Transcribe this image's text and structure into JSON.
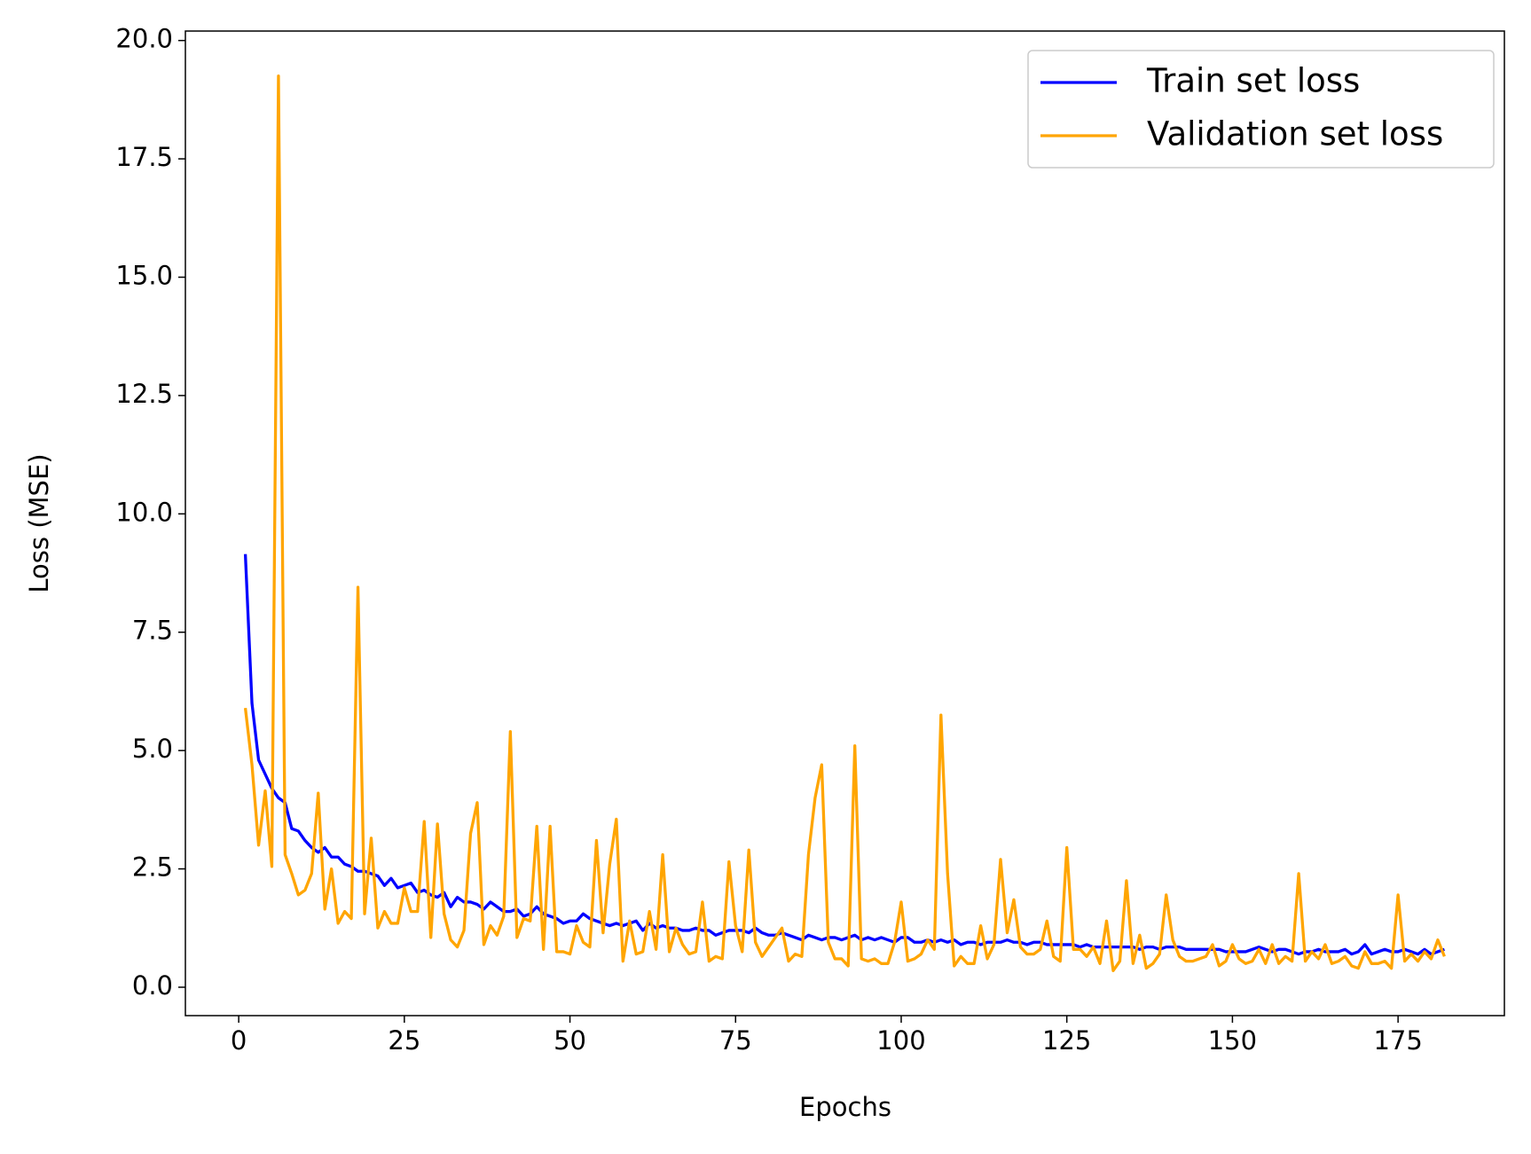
{
  "chart_data": {
    "type": "line",
    "x_label": "Epochs",
    "y_label": "Loss (MSE)",
    "x": [
      1,
      2,
      3,
      4,
      5,
      6,
      7,
      8,
      9,
      10,
      11,
      12,
      13,
      14,
      15,
      16,
      17,
      18,
      19,
      20,
      21,
      22,
      23,
      24,
      25,
      26,
      27,
      28,
      29,
      30,
      31,
      32,
      33,
      34,
      35,
      36,
      37,
      38,
      39,
      40,
      41,
      42,
      43,
      44,
      45,
      46,
      47,
      48,
      49,
      50,
      51,
      52,
      53,
      54,
      55,
      56,
      57,
      58,
      59,
      60,
      61,
      62,
      63,
      64,
      65,
      66,
      67,
      68,
      69,
      70,
      71,
      72,
      73,
      74,
      75,
      76,
      77,
      78,
      79,
      80,
      81,
      82,
      83,
      84,
      85,
      86,
      87,
      88,
      89,
      90,
      91,
      92,
      93,
      94,
      95,
      96,
      97,
      98,
      99,
      100,
      101,
      102,
      103,
      104,
      105,
      106,
      107,
      108,
      109,
      110,
      111,
      112,
      113,
      114,
      115,
      116,
      117,
      118,
      119,
      120,
      121,
      122,
      123,
      124,
      125,
      126,
      127,
      128,
      129,
      130,
      131,
      132,
      133,
      134,
      135,
      136,
      137,
      138,
      139,
      140,
      141,
      142,
      143,
      144,
      145,
      146,
      147,
      148,
      149,
      150,
      151,
      152,
      153,
      154,
      155,
      156,
      157,
      158,
      159,
      160,
      161,
      162,
      163,
      164,
      165,
      166,
      167,
      168,
      169,
      170,
      171,
      172,
      173,
      174,
      175,
      176,
      177,
      178,
      179,
      180,
      181,
      182
    ],
    "series": [
      {
        "name": "Train set loss",
        "color": "#0000ff",
        "values": [
          9.15,
          6.0,
          4.8,
          4.5,
          4.2,
          4.0,
          3.9,
          3.35,
          3.3,
          3.1,
          2.95,
          2.85,
          2.95,
          2.75,
          2.75,
          2.6,
          2.55,
          2.45,
          2.45,
          2.4,
          2.35,
          2.15,
          2.3,
          2.1,
          2.15,
          2.2,
          2.0,
          2.05,
          1.95,
          1.9,
          2.0,
          1.7,
          1.9,
          1.8,
          1.8,
          1.75,
          1.65,
          1.8,
          1.7,
          1.6,
          1.6,
          1.65,
          1.5,
          1.55,
          1.7,
          1.55,
          1.5,
          1.45,
          1.35,
          1.4,
          1.4,
          1.55,
          1.45,
          1.4,
          1.35,
          1.3,
          1.35,
          1.3,
          1.35,
          1.4,
          1.2,
          1.35,
          1.25,
          1.3,
          1.25,
          1.25,
          1.2,
          1.2,
          1.25,
          1.2,
          1.2,
          1.1,
          1.15,
          1.2,
          1.2,
          1.2,
          1.15,
          1.25,
          1.15,
          1.1,
          1.1,
          1.15,
          1.1,
          1.05,
          1.0,
          1.1,
          1.05,
          1.0,
          1.05,
          1.05,
          1.0,
          1.05,
          1.1,
          1.0,
          1.05,
          1.0,
          1.05,
          1.0,
          0.95,
          1.05,
          1.05,
          0.95,
          0.95,
          1.0,
          0.95,
          1.0,
          0.95,
          1.0,
          0.9,
          0.95,
          0.95,
          0.9,
          0.95,
          0.95,
          0.95,
          1.0,
          0.95,
          0.95,
          0.9,
          0.95,
          0.95,
          0.9,
          0.9,
          0.9,
          0.9,
          0.9,
          0.85,
          0.9,
          0.85,
          0.85,
          0.85,
          0.85,
          0.85,
          0.85,
          0.85,
          0.8,
          0.85,
          0.85,
          0.8,
          0.85,
          0.85,
          0.85,
          0.8,
          0.8,
          0.8,
          0.8,
          0.8,
          0.8,
          0.75,
          0.75,
          0.75,
          0.75,
          0.8,
          0.85,
          0.8,
          0.75,
          0.8,
          0.8,
          0.75,
          0.7,
          0.75,
          0.75,
          0.8,
          0.75,
          0.75,
          0.75,
          0.8,
          0.7,
          0.75,
          0.9,
          0.7,
          0.75,
          0.8,
          0.75,
          0.75,
          0.8,
          0.75,
          0.7,
          0.8,
          0.7,
          0.75,
          0.8
        ]
      },
      {
        "name": "Validation set loss",
        "color": "#ffa500",
        "values": [
          5.9,
          4.7,
          3.0,
          4.15,
          2.55,
          19.25,
          2.8,
          2.4,
          1.95,
          2.05,
          2.4,
          4.1,
          1.65,
          2.5,
          1.35,
          1.6,
          1.45,
          8.45,
          1.55,
          3.15,
          1.25,
          1.6,
          1.35,
          1.35,
          2.1,
          1.6,
          1.6,
          3.5,
          1.05,
          3.45,
          1.55,
          1.0,
          0.85,
          1.2,
          3.25,
          3.9,
          0.9,
          1.3,
          1.1,
          1.5,
          5.4,
          1.05,
          1.45,
          1.4,
          3.4,
          0.8,
          3.4,
          0.75,
          0.75,
          0.7,
          1.3,
          0.95,
          0.85,
          3.1,
          1.15,
          2.6,
          3.55,
          0.55,
          1.4,
          0.7,
          0.75,
          1.6,
          0.8,
          2.8,
          0.75,
          1.25,
          0.9,
          0.7,
          0.75,
          1.8,
          0.55,
          0.65,
          0.6,
          2.65,
          1.3,
          0.75,
          2.9,
          0.95,
          0.65,
          0.85,
          1.05,
          1.25,
          0.55,
          0.7,
          0.65,
          2.8,
          4.0,
          4.7,
          0.95,
          0.6,
          0.6,
          0.45,
          5.1,
          0.6,
          0.55,
          0.6,
          0.5,
          0.5,
          0.95,
          1.8,
          0.55,
          0.6,
          0.7,
          1.0,
          0.8,
          5.75,
          2.4,
          0.45,
          0.65,
          0.5,
          0.5,
          1.3,
          0.6,
          0.9,
          2.7,
          1.15,
          1.85,
          0.85,
          0.7,
          0.7,
          0.8,
          1.4,
          0.65,
          0.55,
          2.95,
          0.8,
          0.8,
          0.65,
          0.85,
          0.5,
          1.4,
          0.35,
          0.55,
          2.25,
          0.5,
          1.1,
          0.4,
          0.5,
          0.7,
          1.95,
          1.0,
          0.65,
          0.55,
          0.55,
          0.6,
          0.65,
          0.9,
          0.45,
          0.55,
          0.9,
          0.6,
          0.5,
          0.55,
          0.8,
          0.5,
          0.9,
          0.5,
          0.65,
          0.55,
          2.4,
          0.55,
          0.75,
          0.6,
          0.9,
          0.5,
          0.55,
          0.65,
          0.45,
          0.4,
          0.75,
          0.5,
          0.5,
          0.55,
          0.4,
          1.95,
          0.55,
          0.7,
          0.55,
          0.75,
          0.6,
          1.0,
          0.65
        ]
      }
    ],
    "xlim": [
      -8.05,
      191.05
    ],
    "ylim": [
      -0.6,
      20.2
    ],
    "xticks": [
      0,
      25,
      50,
      75,
      100,
      125,
      150,
      175
    ],
    "yticks": [
      {
        "value": 0,
        "label": "0.0"
      },
      2.5,
      {
        "value": 5,
        "label": "5.0"
      },
      7.5,
      {
        "value": 10,
        "label": "10.0"
      },
      12.5,
      {
        "value": 15,
        "label": "15.0"
      },
      17.5,
      {
        "value": 20,
        "label": "20.0"
      }
    ],
    "grid": false,
    "legend": "upper right"
  }
}
